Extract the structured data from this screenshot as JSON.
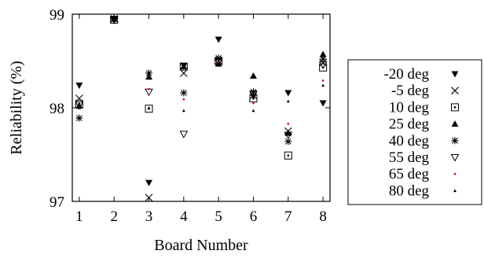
{
  "chart_data": {
    "type": "scatter",
    "title": "",
    "xlabel": "Board Number",
    "ylabel": "Reliability (%)",
    "xlim": [
      0.8,
      8.2
    ],
    "ylim": [
      97,
      99
    ],
    "xticks": [
      1,
      2,
      3,
      4,
      5,
      6,
      7,
      8
    ],
    "xtick_labels": [
      "1",
      "2",
      "3",
      "4",
      "5",
      "6",
      "7",
      "8"
    ],
    "yticks": [
      97,
      98,
      99
    ],
    "ytick_labels": [
      "97",
      "98",
      "99"
    ],
    "grid": false,
    "legend_position": "right",
    "x": [
      1,
      2,
      3,
      4,
      5,
      6,
      7,
      8
    ],
    "series": [
      {
        "name": "-20 deg",
        "marker": "triangle-down",
        "color": "#000000",
        "values": [
          98.24,
          98.94,
          97.2,
          98.45,
          98.73,
          98.12,
          98.16,
          98.05
        ]
      },
      {
        "name": "-5 deg",
        "marker": "x",
        "color": "#000000",
        "values": [
          98.1,
          98.95,
          97.04,
          98.37,
          98.5,
          98.13,
          97.75,
          98.48
        ]
      },
      {
        "name": "10 deg",
        "marker": "square",
        "color": "#000000",
        "values": [
          98.04,
          98.94,
          97.99,
          98.44,
          98.5,
          98.1,
          97.49,
          98.43
        ]
      },
      {
        "name": "25 deg",
        "marker": "triangle-up",
        "color": "#000000",
        "values": [
          98.02,
          98.95,
          98.33,
          98.44,
          98.47,
          98.34,
          97.73,
          98.57
        ]
      },
      {
        "name": "40 deg",
        "marker": "star",
        "color": "#000000",
        "values": [
          97.89,
          98.95,
          98.37,
          98.16,
          98.53,
          98.17,
          97.64,
          98.52
        ]
      },
      {
        "name": "55 deg",
        "marker": "triangle-down-open",
        "color": "#000000",
        "values": [
          98.03,
          98.94,
          98.17,
          97.72,
          98.49,
          98.15,
          97.71,
          98.46
        ]
      },
      {
        "name": "65 deg",
        "marker": "dot",
        "color": "#e01818",
        "values": [
          98.0,
          98.94,
          98.2,
          98.09,
          98.48,
          98.05,
          97.83,
          98.29
        ]
      },
      {
        "name": "80 deg",
        "marker": "small-triangle-up",
        "color": "#000000",
        "values": [
          98.0,
          98.94,
          98.0,
          97.97,
          98.47,
          97.97,
          98.07,
          98.24
        ]
      }
    ]
  }
}
